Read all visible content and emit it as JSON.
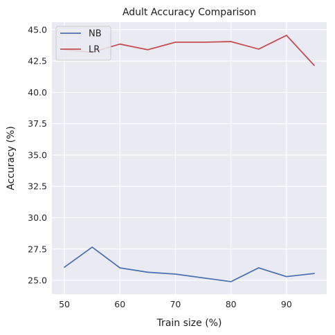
{
  "chart_data": {
    "type": "line",
    "title": "Adult Accuracy Comparison",
    "xlabel": "Train size (%)",
    "ylabel": "Accuracy (%)",
    "x": [
      50,
      55,
      60,
      65,
      70,
      75,
      80,
      85,
      90,
      95
    ],
    "xlim": [
      47.75,
      97.25
    ],
    "ylim": [
      23.9,
      45.6
    ],
    "xticks": [
      50,
      60,
      70,
      80,
      90
    ],
    "yticks": [
      25.0,
      27.5,
      30.0,
      32.5,
      35.0,
      37.5,
      40.0,
      42.5,
      45.0
    ],
    "xtick_labels": [
      "50",
      "60",
      "70",
      "80",
      "90"
    ],
    "ytick_labels": [
      "25.0",
      "27.5",
      "30.0",
      "32.5",
      "35.0",
      "37.5",
      "40.0",
      "42.5",
      "45.0"
    ],
    "grid": true,
    "legend_position": "top-left",
    "series": [
      {
        "name": "NB",
        "color": "#4c72b0",
        "values": [
          26.05,
          27.65,
          26.0,
          25.65,
          25.5,
          25.2,
          24.9,
          26.0,
          25.3,
          25.55
        ]
      },
      {
        "name": "LR",
        "color": "#c44e52",
        "values": [
          43.4,
          43.2,
          43.85,
          43.4,
          44.0,
          44.0,
          44.05,
          43.45,
          44.55,
          42.15
        ]
      }
    ]
  }
}
